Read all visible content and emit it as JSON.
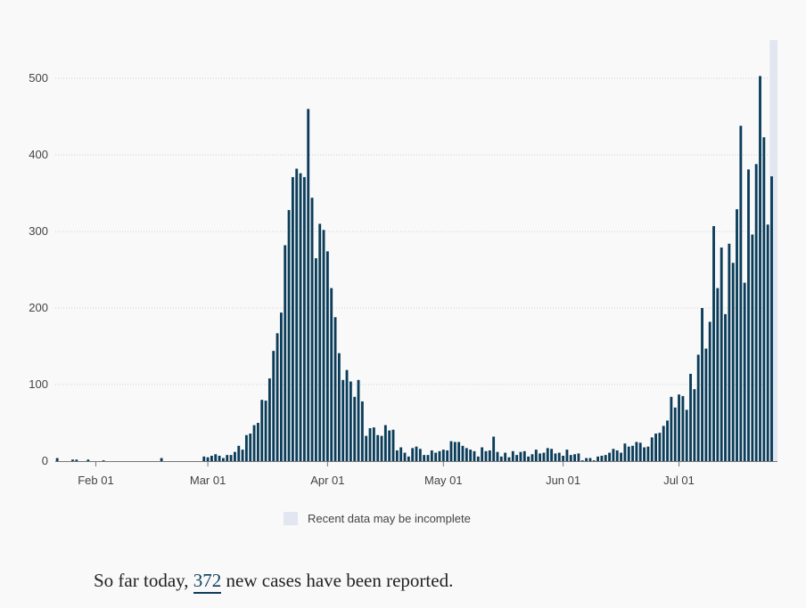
{
  "chart_data": {
    "type": "bar",
    "title": "",
    "xlabel": "",
    "ylabel": "",
    "ylim": [
      0,
      550
    ],
    "yticks": [
      0,
      100,
      200,
      300,
      400,
      500
    ],
    "grid": true,
    "bar_color": "#0b3d5a",
    "incomplete_shade_color": "#e2e6f0",
    "start_date": "2020-01-22",
    "end_date": "2020-07-26",
    "x_ticks": [
      {
        "date": "2020-02-01",
        "label": "Feb 01"
      },
      {
        "date": "2020-03-01",
        "label": "Mar 01"
      },
      {
        "date": "2020-04-01",
        "label": "Apr 01"
      },
      {
        "date": "2020-05-01",
        "label": "May 01"
      },
      {
        "date": "2020-06-01",
        "label": "Jun 01"
      },
      {
        "date": "2020-07-01",
        "label": "Jul 01"
      }
    ],
    "incomplete_from": "2020-07-25",
    "values": [
      4,
      0,
      0,
      0,
      2,
      2,
      0,
      0,
      2,
      0,
      0,
      0,
      1,
      0,
      0,
      0,
      0,
      0,
      0,
      0,
      0,
      0,
      0,
      0,
      0,
      0,
      0,
      4,
      0,
      0,
      0,
      0,
      0,
      0,
      0,
      0,
      0,
      0,
      6,
      5,
      7,
      9,
      7,
      4,
      8,
      8,
      12,
      20,
      15,
      34,
      36,
      47,
      50,
      80,
      79,
      108,
      144,
      167,
      194,
      282,
      328,
      371,
      382,
      376,
      371,
      460,
      344,
      265,
      310,
      302,
      274,
      226,
      188,
      141,
      106,
      119,
      104,
      84,
      106,
      78,
      33,
      43,
      44,
      34,
      33,
      47,
      40,
      41,
      14,
      18,
      11,
      6,
      17,
      19,
      16,
      8,
      8,
      14,
      11,
      13,
      15,
      14,
      26,
      25,
      25,
      20,
      17,
      15,
      13,
      6,
      18,
      13,
      14,
      32,
      12,
      6,
      11,
      5,
      13,
      8,
      12,
      13,
      6,
      9,
      15,
      10,
      11,
      17,
      16,
      10,
      11,
      7,
      15,
      8,
      9,
      10,
      1,
      4,
      4,
      1,
      6,
      7,
      8,
      11,
      16,
      14,
      11,
      23,
      19,
      20,
      25,
      24,
      18,
      19,
      31,
      36,
      37,
      46,
      53,
      84,
      70,
      87,
      85,
      67,
      114,
      94,
      139,
      200,
      147,
      182,
      307,
      226,
      279,
      192,
      284,
      259,
      329,
      438,
      233,
      381,
      296,
      388,
      503,
      423,
      309,
      372
    ]
  },
  "legend": {
    "label": "Recent data may be incomplete"
  },
  "summary": {
    "prefix": "So far today,",
    "count": "372",
    "suffix": "new cases have been reported."
  }
}
